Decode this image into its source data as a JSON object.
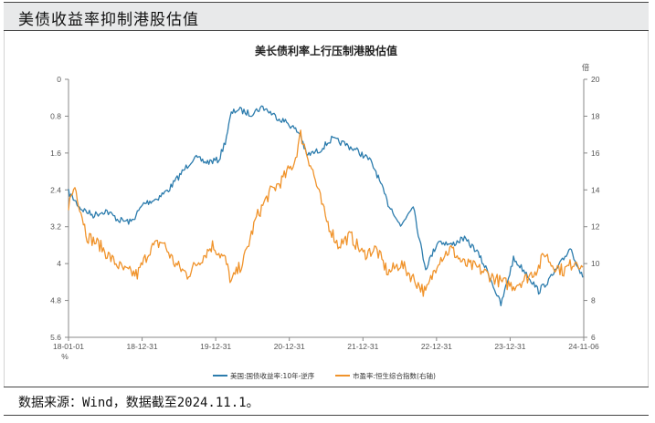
{
  "header": {
    "title": "美债收益率抑制港股估值"
  },
  "footer": {
    "source": "数据来源：Wind，数据截至2024.11.1。"
  },
  "chart_data": {
    "type": "line",
    "title": "美长债利率上行压制港股估值",
    "left_axis": {
      "label": "%",
      "inverted": true,
      "range": [
        0,
        5.6
      ],
      "ticks": [
        "0",
        "0.8",
        "1.6",
        "2.4",
        "3.2",
        "4",
        "4.8",
        "5.6"
      ]
    },
    "right_axis": {
      "label": "倍",
      "range": [
        6,
        20
      ],
      "ticks": [
        "20",
        "18",
        "16",
        "14",
        "12",
        "10",
        "8",
        "6"
      ]
    },
    "x_ticks": [
      "18-01-01",
      "18-12-31",
      "19-12-31",
      "20-12-31",
      "21-12-31",
      "22-12-31",
      "23-12-31",
      "24-11-06"
    ],
    "colors": {
      "blue": "#2c7cad",
      "orange": "#f0932b"
    },
    "series": [
      {
        "name": "美国:国债收益率:10年-逆序",
        "axis": "left",
        "dates": [
          "2018-01",
          "2018-03",
          "2018-05",
          "2018-07",
          "2018-09",
          "2018-11",
          "2019-01",
          "2019-03",
          "2019-05",
          "2019-07",
          "2019-09",
          "2019-11",
          "2020-01",
          "2020-02",
          "2020-03",
          "2020-04",
          "2020-06",
          "2020-08",
          "2020-10",
          "2020-12",
          "2021-02",
          "2021-03",
          "2021-05",
          "2021-07",
          "2021-09",
          "2021-11",
          "2022-01",
          "2022-02",
          "2022-04",
          "2022-05",
          "2022-06",
          "2022-08",
          "2022-09",
          "2022-10",
          "2022-11",
          "2022-12",
          "2023-02",
          "2023-04",
          "2023-06",
          "2023-08",
          "2023-10",
          "2023-12",
          "2024-02",
          "2024-04",
          "2024-06",
          "2024-08",
          "2024-09",
          "2024-11"
        ],
        "values": [
          2.45,
          2.8,
          2.95,
          2.85,
          3.05,
          3.1,
          2.7,
          2.6,
          2.4,
          2.05,
          1.7,
          1.8,
          1.75,
          1.35,
          0.75,
          0.65,
          0.75,
          0.6,
          0.8,
          0.95,
          1.2,
          1.65,
          1.55,
          1.3,
          1.4,
          1.55,
          1.75,
          2.0,
          2.7,
          2.9,
          3.2,
          2.7,
          3.5,
          4.1,
          3.8,
          3.5,
          3.6,
          3.45,
          3.7,
          4.2,
          4.9,
          3.9,
          4.2,
          4.6,
          4.3,
          3.9,
          3.65,
          4.3
        ]
      },
      {
        "name": "市盈率:恒生综合指数(右轴)",
        "axis": "right",
        "dates": [
          "2018-01",
          "2018-02",
          "2018-04",
          "2018-06",
          "2018-08",
          "2018-10",
          "2018-12",
          "2019-02",
          "2019-04",
          "2019-06",
          "2019-08",
          "2019-10",
          "2019-12",
          "2020-02",
          "2020-03",
          "2020-05",
          "2020-07",
          "2020-09",
          "2020-11",
          "2021-01",
          "2021-02",
          "2021-04",
          "2021-06",
          "2021-08",
          "2021-10",
          "2021-12",
          "2022-02",
          "2022-04",
          "2022-06",
          "2022-08",
          "2022-10",
          "2022-12",
          "2023-02",
          "2023-04",
          "2023-06",
          "2023-08",
          "2023-10",
          "2023-12",
          "2024-02",
          "2024-04",
          "2024-05",
          "2024-06",
          "2024-08",
          "2024-10",
          "2024-11"
        ],
        "values": [
          13.2,
          14.2,
          11.5,
          11.0,
          10.2,
          9.6,
          9.4,
          10.8,
          11.2,
          10.0,
          9.4,
          10.2,
          11.0,
          10.2,
          9.0,
          10.2,
          12.5,
          13.8,
          14.5,
          15.5,
          17.0,
          15.0,
          12.5,
          11.0,
          11.5,
          10.5,
          10.8,
          9.5,
          10.0,
          9.2,
          8.4,
          10.2,
          10.8,
          10.0,
          9.8,
          9.4,
          9.0,
          8.8,
          9.2,
          9.8,
          10.6,
          10.0,
          9.6,
          10.2,
          9.8
        ]
      }
    ]
  }
}
